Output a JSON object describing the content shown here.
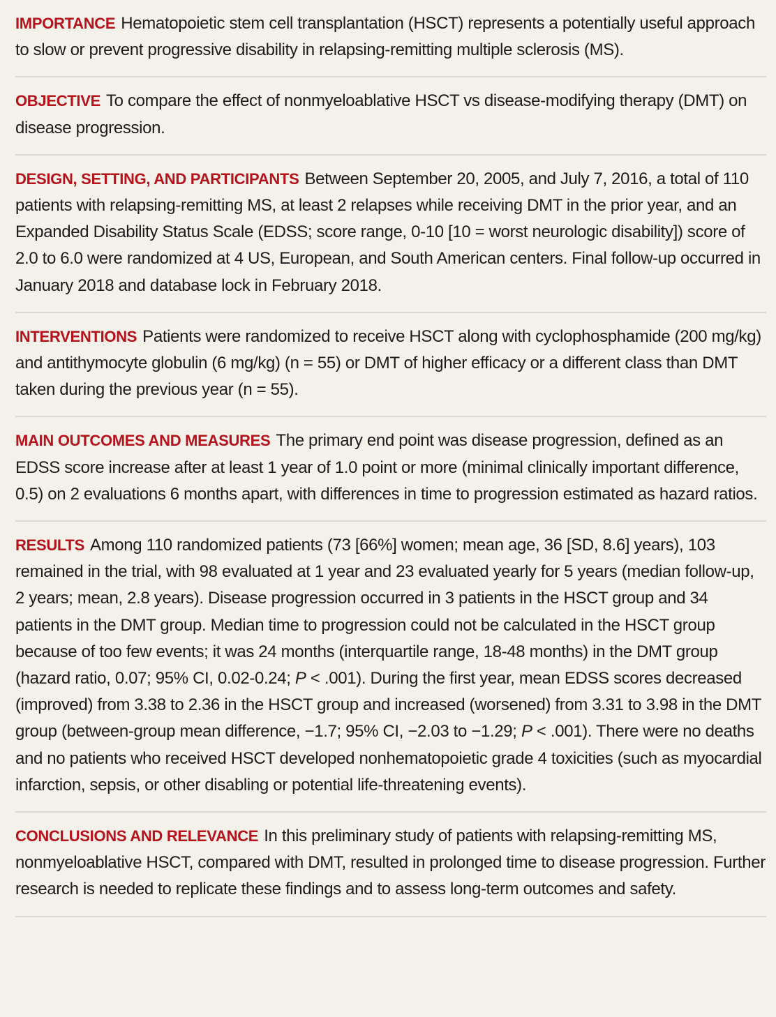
{
  "sections": [
    {
      "heading": "IMPORTANCE",
      "text": "Hematopoietic stem cell transplantation (HSCT) represents a potentially useful approach to slow or prevent progressive disability in relapsing-remitting multiple sclerosis (MS)."
    },
    {
      "heading": "OBJECTIVE",
      "text": "To compare the effect of nonmyeloablative HSCT vs disease-modifying therapy (DMT) on disease progression."
    },
    {
      "heading": "DESIGN, SETTING, AND PARTICIPANTS",
      "text": "Between September 20, 2005, and July 7, 2016, a total of 110 patients with relapsing-remitting MS, at least 2 relapses while receiving DMT in the prior year, and an Expanded Disability Status Scale (EDSS; score range, 0-10 [10 = worst neurologic disability]) score of 2.0 to 6.0 were randomized at 4 US, European, and South American centers. Final follow-up occurred in January 2018 and database lock in February 2018."
    },
    {
      "heading": "INTERVENTIONS",
      "text": "Patients were randomized to receive HSCT along with cyclophosphamide (200 mg/kg) and antithymocyte globulin (6 mg/kg) (n = 55) or DMT of higher efficacy or a different class than DMT taken during the previous year (n = 55)."
    },
    {
      "heading": "MAIN OUTCOMES AND MEASURES",
      "text": "The primary end point was disease progression, defined as an EDSS score increase after at least 1 year of 1.0 point or more (minimal clinically important difference, 0.5) on 2 evaluations 6 months apart, with differences in time to progression estimated as hazard ratios."
    },
    {
      "heading": "RESULTS",
      "text_part1": "Among 110 randomized patients (73 [66%] women; mean age, 36 [SD, 8.6] years), 103 remained in the trial, with 98 evaluated at 1 year and 23 evaluated yearly for 5 years (median follow-up, 2 years; mean, 2.8 years). Disease progression occurred in 3 patients in the HSCT group and 34 patients in the DMT group. Median time to progression could not be calculated in the HSCT group because of too few events; it was 24 months (interquartile range, 18-48 months) in the DMT group (hazard ratio, 0.07; 95% CI, 0.02-0.24;",
      "p_symbol_1": "P",
      "text_part2": " < .001). During the first year, mean EDSS scores decreased (improved) from 3.38 to 2.36 in the HSCT group and increased (worsened) from 3.31 to 3.98 in the DMT group (between-group mean difference, −1.7; 95% CI, −2.03 to −1.29;",
      "p_symbol_2": "P",
      "text_part3": " < .001). There were no deaths and no patients who received HSCT developed nonhematopoietic grade 4 toxicities (such as myocardial infarction, sepsis, or other disabling or potential life-threatening events)."
    },
    {
      "heading": "CONCLUSIONS AND RELEVANCE",
      "text": "In this preliminary study of patients with relapsing-remitting MS, nonmyeloablative HSCT, compared with DMT, resulted in prolonged time to disease progression. Further research is needed to replicate these findings and to assess long-term outcomes and safety."
    }
  ]
}
